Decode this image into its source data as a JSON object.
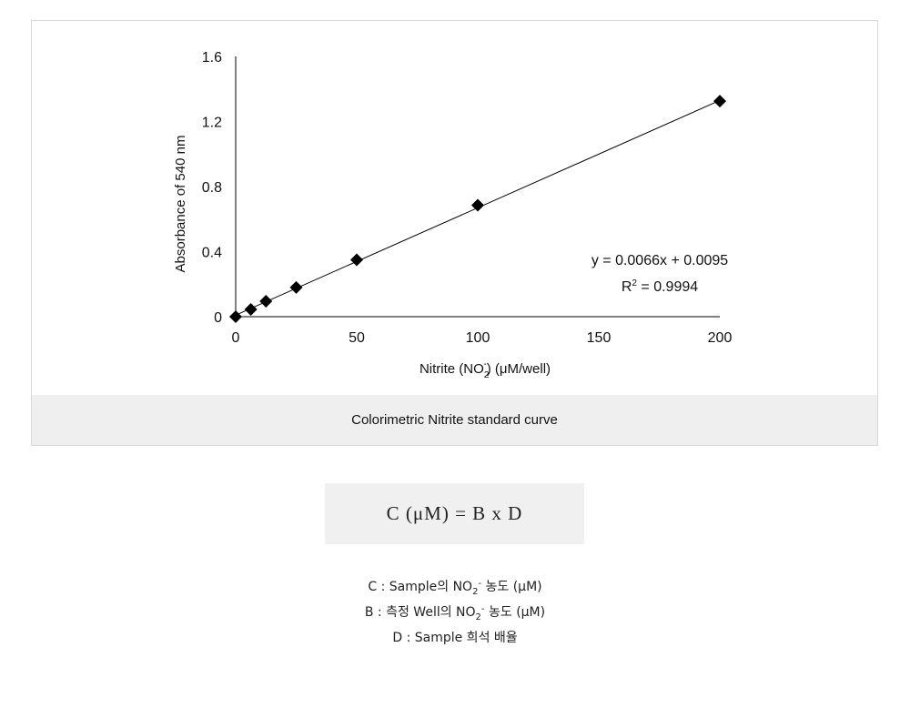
{
  "chart_data": {
    "type": "scatter",
    "title": "",
    "xlabel_parts": {
      "pre": "Nitrite (NO",
      "sub": "2",
      "sup": "-",
      "post": ") (μM/well)"
    },
    "ylabel": "Absorbance of 540 nm",
    "xlim": [
      0,
      200
    ],
    "ylim": [
      0,
      1.6
    ],
    "xticks": [
      0,
      50,
      100,
      150,
      200
    ],
    "xtick_labels": [
      "0",
      "50",
      "100",
      "150",
      "200"
    ],
    "yticks": [
      0,
      0.4,
      0.8,
      1.2,
      1.6
    ],
    "ytick_labels": [
      "0",
      "0.4",
      "0.8",
      "1.2",
      "1.6"
    ],
    "grid": false,
    "marker": "diamond",
    "marker_color": "#000000",
    "points": [
      {
        "x": 0,
        "y": 0.0
      },
      {
        "x": 6.25,
        "y": 0.045
      },
      {
        "x": 12.5,
        "y": 0.095
      },
      {
        "x": 25,
        "y": 0.18
      },
      {
        "x": 50,
        "y": 0.35
      },
      {
        "x": 100,
        "y": 0.685
      },
      {
        "x": 200,
        "y": 1.325
      }
    ],
    "trendline": {
      "slope": 0.0066,
      "intercept": 0.0095,
      "equation": "y = 0.0066x + 0.0095",
      "r2_prefix": "R",
      "r2_sup": "2",
      "r2_value": " = 0.9994"
    }
  },
  "caption": "Colorimetric Nitrite standard curve",
  "formula": "C (μM) = B x D",
  "legend": {
    "line1": {
      "pre": "C : Sample의 NO",
      "sub": "2",
      "sup": "-",
      "post": " 농도 (μM)"
    },
    "line2": {
      "pre": "B : 측정 Well의 NO",
      "sub": "2",
      "sup": "-",
      "post": " 농도 (μM)"
    },
    "line3": "D : Sample 희석 배율"
  }
}
